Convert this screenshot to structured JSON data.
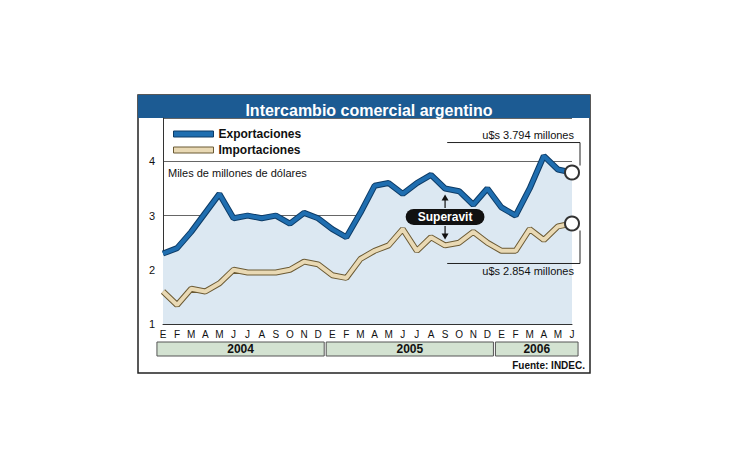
{
  "chart_data": {
    "type": "line",
    "title": "Intercambio comercial argentino",
    "y_label": "Miles de millones de dólares",
    "categories": [
      "E",
      "F",
      "M",
      "A",
      "M",
      "J",
      "J",
      "A",
      "S",
      "O",
      "N",
      "D",
      "E",
      "F",
      "M",
      "A",
      "M",
      "J",
      "J",
      "A",
      "S",
      "O",
      "N",
      "D",
      "E",
      "F",
      "M",
      "A",
      "M",
      "J"
    ],
    "year_groups": [
      {
        "label": "2004",
        "count": 12
      },
      {
        "label": "2005",
        "count": 12
      },
      {
        "label": "2006",
        "count": 6
      }
    ],
    "series": [
      {
        "name": "Exportaciones",
        "color": "#1f6eb0",
        "values": [
          2.3,
          2.4,
          2.7,
          3.05,
          3.4,
          2.95,
          3.0,
          2.95,
          3.0,
          2.85,
          3.05,
          2.95,
          2.75,
          2.6,
          3.05,
          3.55,
          3.6,
          3.4,
          3.6,
          3.75,
          3.5,
          3.45,
          3.2,
          3.5,
          3.15,
          3.0,
          3.5,
          4.1,
          3.85,
          3.794
        ]
      },
      {
        "name": "Importaciones",
        "color": "#e9d9b4",
        "values": [
          1.6,
          1.35,
          1.65,
          1.6,
          1.75,
          2.0,
          1.95,
          1.95,
          1.95,
          2.0,
          2.15,
          2.1,
          1.9,
          1.85,
          2.2,
          2.35,
          2.45,
          2.75,
          2.35,
          2.6,
          2.45,
          2.5,
          2.7,
          2.5,
          2.35,
          2.35,
          2.75,
          2.55,
          2.8,
          2.854
        ]
      }
    ],
    "ylim": [
      1,
      4.8
    ],
    "yticks": [
      1,
      2,
      3,
      4
    ],
    "grid": true,
    "legend": "top-left",
    "annotations": [
      {
        "text": "Superavit",
        "category_index": 20
      },
      {
        "text": "u$s 3.794 millones",
        "series": "Exportaciones",
        "value": 3.794
      },
      {
        "text": "u$s 2.854 millones",
        "series": "Importaciones",
        "value": 2.854
      }
    ],
    "source": "Fuente: INDEC."
  }
}
